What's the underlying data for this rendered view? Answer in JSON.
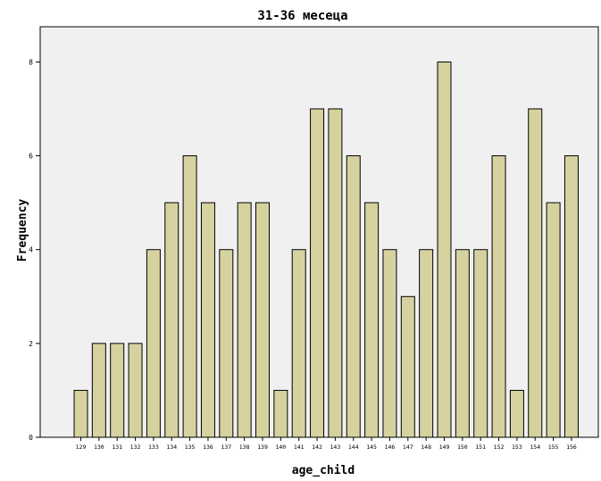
{
  "chart_data": {
    "type": "bar",
    "title": "31-36 месеца",
    "xlabel": "age_child",
    "ylabel": "Frequency",
    "categories": [
      "129",
      "130",
      "131",
      "132",
      "133",
      "134",
      "135",
      "136",
      "137",
      "138",
      "139",
      "140",
      "141",
      "142",
      "143",
      "144",
      "145",
      "146",
      "147",
      "148",
      "149",
      "150",
      "151",
      "152",
      "153",
      "154",
      "155",
      "156"
    ],
    "values": [
      1,
      2,
      2,
      2,
      4,
      5,
      6,
      5,
      4,
      5,
      5,
      1,
      4,
      7,
      7,
      6,
      5,
      4,
      3,
      4,
      8,
      4,
      4,
      6,
      1,
      7,
      5,
      6
    ],
    "yticks": [
      0,
      2,
      4,
      6,
      8
    ],
    "ylim": [
      0,
      8.75
    ],
    "grid": false,
    "colors": {
      "bar_fill": "#d6d2a0",
      "plot_background": "#f0f0f0",
      "bar_edge": "#000000"
    }
  }
}
